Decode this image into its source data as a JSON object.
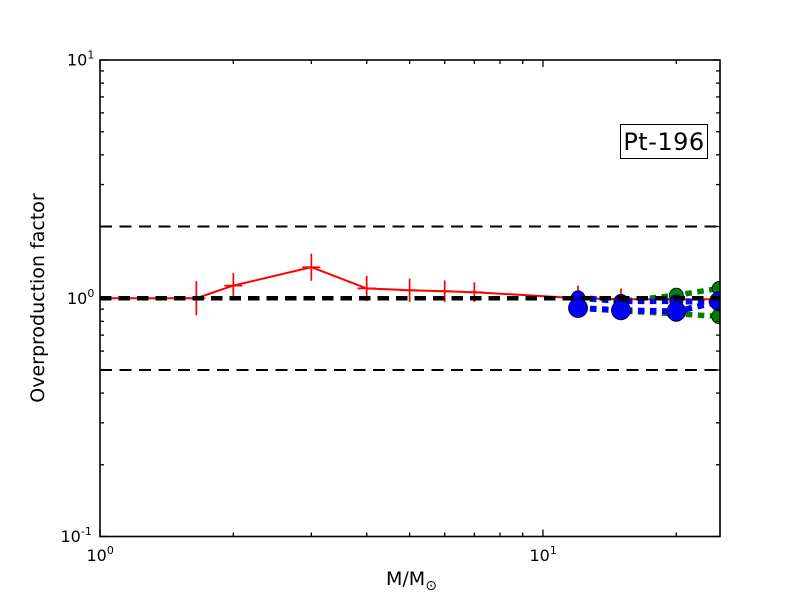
{
  "figure": {
    "background": "#ffffff",
    "frame_color": "#000000"
  },
  "chart_data": {
    "type": "line",
    "title": "",
    "annotation": {
      "text": "Pt-196"
    },
    "ylabel": "Overproduction factor",
    "xlabel_main": "M/M",
    "xlabel_sub": "⊙",
    "xscale": "log",
    "yscale": "log",
    "xlim": [
      1.0,
      25.1
    ],
    "ylim": [
      0.1,
      10.0
    ],
    "grid": false,
    "legend": "none",
    "x_ticks": [
      {
        "value": 1,
        "base": "10",
        "exponent": "0"
      },
      {
        "value": 10,
        "base": "10",
        "exponent": "1"
      }
    ],
    "y_ticks": [
      {
        "value": 0.1,
        "base": "10",
        "exponent": "-1"
      },
      {
        "value": 1,
        "base": "10",
        "exponent": "0"
      },
      {
        "value": 10,
        "base": "10",
        "exponent": "1"
      }
    ],
    "guide_color": "#000000",
    "guides": [
      {
        "y": 2.0,
        "weight": "thin"
      },
      {
        "y": 1.0,
        "weight": "thick"
      },
      {
        "y": 0.5,
        "weight": "thin"
      }
    ],
    "series": [
      {
        "name": "red-errorbar-line",
        "color": "#ff0000",
        "linestyle": "solid",
        "linewidth": 2,
        "marker": "plus",
        "x": [
          1.0,
          1.65,
          2.0,
          3.0,
          4.0,
          5.0,
          6.0,
          7.0,
          12.0,
          15.0,
          20.0,
          25.0
        ],
        "y": [
          1.0,
          1.0,
          1.13,
          1.35,
          1.1,
          1.08,
          1.07,
          1.06,
          1.0,
          0.99,
          0.99,
          0.99
        ],
        "yerr_factor": [
          null,
          1.18,
          1.13,
          1.14,
          1.13,
          1.12,
          1.11,
          1.1,
          1.13,
          1.11,
          1.11,
          1.1
        ]
      },
      {
        "name": "green-upper-dashed-circles",
        "color": "#008000",
        "linestyle": "dashed",
        "linewidth": 5.5,
        "marker": "circle",
        "markersize": 7,
        "x": [
          12,
          15,
          20,
          25
        ],
        "y": [
          1.0,
          0.97,
          1.03,
          1.1
        ]
      },
      {
        "name": "green-lower-dashed-circles",
        "color": "#008000",
        "linestyle": "dashed",
        "linewidth": 5.5,
        "marker": "circle",
        "markersize": 7.5,
        "x": [
          12,
          15,
          20,
          25
        ],
        "y": [
          0.91,
          0.885,
          0.86,
          0.84
        ]
      },
      {
        "name": "blue-small-dashed-circles",
        "color": "#0000ff",
        "linestyle": "dashed",
        "linewidth": 5.5,
        "marker": "circle",
        "markersize": 6.5,
        "x": [
          12,
          15,
          20,
          25
        ],
        "y": [
          1.01,
          0.97,
          0.97,
          0.96
        ]
      },
      {
        "name": "blue-large-dashed-circles",
        "color": "#0000ff",
        "linestyle": "dashed",
        "linewidth": 6,
        "marker": "circle",
        "markersize": 9.5,
        "x": [
          12,
          15,
          20,
          25
        ],
        "y": [
          0.91,
          0.89,
          0.88,
          0.97
        ]
      }
    ]
  }
}
